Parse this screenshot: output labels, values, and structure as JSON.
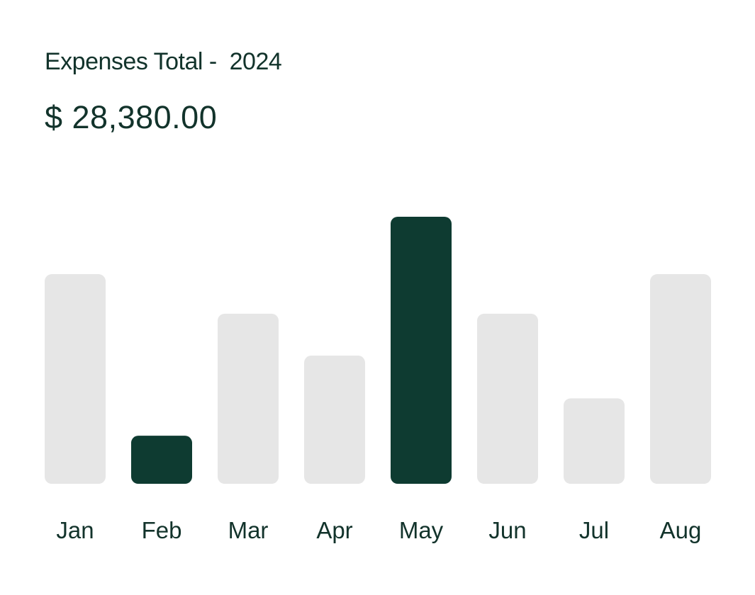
{
  "header": {
    "title": "Expenses Total -  2024",
    "amount": "$ 28,380.00"
  },
  "chart_data": {
    "type": "bar",
    "categories": [
      "Jan",
      "Feb",
      "Mar",
      "Apr",
      "May",
      "Jun",
      "Jul",
      "Aug"
    ],
    "values": [
      78.5,
      18,
      63.7,
      48,
      100,
      63.7,
      32,
      78.5
    ],
    "highlighted": [
      "Feb",
      "May"
    ],
    "title": "",
    "xlabel": "",
    "ylabel": "",
    "ylim": [
      0,
      100
    ],
    "grid": false,
    "colors": {
      "highlight": "#0e3b31",
      "default": "#e6e6e6"
    }
  }
}
